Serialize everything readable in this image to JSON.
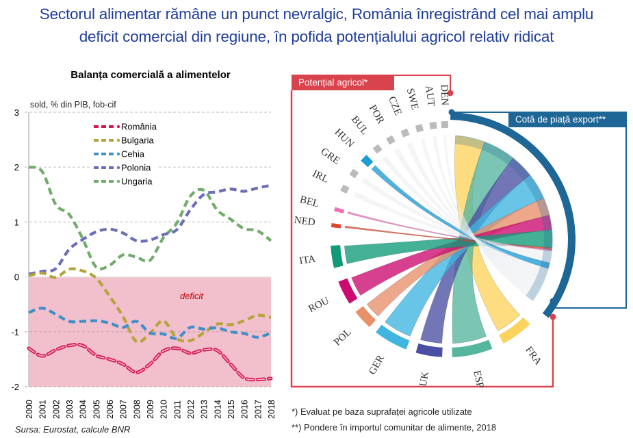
{
  "header": {
    "title_line1": "Sectorul alimentar rămâne un punct nevralgic, România înregistrând cel mai amplu",
    "title_line2": "deficit comercial din regiune, în pofida potențialului agricol relativ ridicat"
  },
  "source": "Sursa: Eurostat,  calcule BNR",
  "footnotes": [
    "*) Evaluat pe baza suprafaței agricole utilizate",
    "**) Pondere în importul comunitar de alimente, 2018"
  ],
  "colors": {
    "title": "#1f3d99",
    "deficit_area": "#f2bfcc",
    "potential_box": "#d9434e",
    "export_box": "#1d6696"
  },
  "chart_data": [
    {
      "type": "line",
      "title": "Balanța comercială a alimentelor",
      "ylabel": "sold, % din PIB, fob-cif",
      "xlabel": "",
      "ylim": [
        -2,
        3
      ],
      "yticks": [
        "3",
        "2",
        "1",
        "0",
        "-1",
        "-2"
      ],
      "grid": true,
      "legend": "top-center",
      "annotation": "deficit",
      "x": [
        "2000",
        "2001",
        "2002",
        "2003",
        "2004",
        "2005",
        "2006",
        "2007",
        "2008",
        "2009",
        "2010",
        "2011",
        "2012",
        "2013",
        "2014",
        "2015",
        "2016",
        "2017",
        "2018"
      ],
      "series": [
        {
          "name": "România",
          "color": "#d6174f",
          "values": [
            -1.3,
            -1.44,
            -1.33,
            -1.25,
            -1.25,
            -1.43,
            -1.5,
            -1.59,
            -1.74,
            -1.59,
            -1.35,
            -1.3,
            -1.39,
            -1.33,
            -1.34,
            -1.59,
            -1.84,
            -1.87,
            -1.85
          ]
        },
        {
          "name": "Bulgaria",
          "color": "#b5a43a",
          "values": [
            0.02,
            0.07,
            -0.01,
            0.14,
            0.11,
            -0.02,
            -0.35,
            -0.72,
            -1.18,
            -1.03,
            -0.8,
            -1.12,
            -1.16,
            -1.02,
            -0.86,
            -0.87,
            -0.8,
            -0.7,
            -0.74
          ]
        },
        {
          "name": "Cehia",
          "color": "#3f8fc9",
          "values": [
            -0.65,
            -0.57,
            -0.68,
            -0.81,
            -0.81,
            -0.8,
            -0.84,
            -0.92,
            -0.81,
            -1.02,
            -1.04,
            -1.12,
            -0.92,
            -0.95,
            -0.93,
            -1.0,
            -1.03,
            -1.1,
            -1.02
          ]
        },
        {
          "name": "Polonia",
          "color": "#6a6db8",
          "values": [
            0.05,
            0.1,
            0.15,
            0.5,
            0.68,
            0.82,
            0.87,
            0.8,
            0.66,
            0.67,
            0.77,
            0.86,
            1.22,
            1.5,
            1.55,
            1.6,
            1.56,
            1.62,
            1.67
          ]
        },
        {
          "name": "Ungaria",
          "color": "#72ab6a",
          "values": [
            2.0,
            1.92,
            1.32,
            1.14,
            0.7,
            0.18,
            0.21,
            0.4,
            0.36,
            0.3,
            0.71,
            0.98,
            1.47,
            1.58,
            1.22,
            1.05,
            0.88,
            0.84,
            0.66
          ]
        }
      ]
    },
    {
      "type": "chord",
      "title_left": "Potențial agricol*",
      "title_right": "Cotă de piață export**",
      "nodes": [
        {
          "label": "FRA",
          "color": "#fcd35c",
          "share": 0.1
        },
        {
          "label": "ESP",
          "color": "#55b59e",
          "share": 0.11
        },
        {
          "label": "UK",
          "color": "#4a4fa3",
          "share": 0.08
        },
        {
          "label": "GER",
          "color": "#3fb5e0",
          "share": 0.09
        },
        {
          "label": "POL",
          "color": "#e8906a",
          "share": 0.06
        },
        {
          "label": "ROU",
          "color": "#cc0a6f",
          "share": 0.05
        },
        {
          "label": "ITA",
          "color": "#0f9a78",
          "share": 0.06
        },
        {
          "label": "NED",
          "color": "#e0452c",
          "share": 0.006
        },
        {
          "label": "BEL",
          "color": "#ef6fb8",
          "share": 0.005
        },
        {
          "label": "IRL",
          "color": "#bbbbbb",
          "share": 0.02
        },
        {
          "label": "GRE",
          "color": "#bbbbbb",
          "share": 0.02
        },
        {
          "label": "HUN",
          "color": "#1c9bd7",
          "share": 0.02
        },
        {
          "label": "BUL",
          "color": "#bbbbbb",
          "share": 0.02
        },
        {
          "label": "POR",
          "color": "#bbbbbb",
          "share": 0.02
        },
        {
          "label": "CZE",
          "color": "#bbbbbb",
          "share": 0.02
        },
        {
          "label": "SWE",
          "color": "#bbbbbb",
          "share": 0.02
        },
        {
          "label": "AUT",
          "color": "#bbbbbb",
          "share": 0.02
        },
        {
          "label": "DEN",
          "color": "#bbbbbb",
          "share": 0.02
        }
      ],
      "export_arc_color": "#1d6696"
    }
  ]
}
